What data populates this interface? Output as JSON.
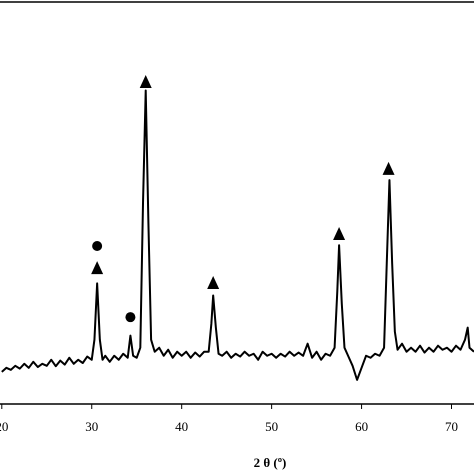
{
  "chart_data": {
    "type": "line",
    "x_label": "2 θ (º)",
    "xlim": [
      19.8,
      72.5
    ],
    "ylim": [
      0,
      100
    ],
    "xticks": [
      20,
      30,
      40,
      50,
      60,
      70
    ],
    "color": "#000000",
    "x": [
      20,
      20.5,
      21,
      21.5,
      22,
      22.5,
      23,
      23.5,
      24,
      24.5,
      25,
      25.5,
      26,
      26.5,
      27,
      27.5,
      28,
      28.5,
      29,
      29.5,
      30,
      30.3,
      30.6,
      30.9,
      31.2,
      31.5,
      32,
      32.5,
      33,
      33.5,
      34,
      34.3,
      34.6,
      35,
      35.4,
      35.7,
      36,
      36.3,
      36.6,
      37,
      37.5,
      38,
      38.5,
      39,
      39.5,
      40,
      40.5,
      41,
      41.5,
      42,
      42.5,
      43,
      43.3,
      43.5,
      43.8,
      44.1,
      44.5,
      45,
      45.5,
      46,
      46.5,
      47,
      47.5,
      48,
      48.5,
      49,
      49.5,
      50,
      50.5,
      51,
      51.5,
      52,
      52.5,
      53,
      53.5,
      54,
      54.5,
      55,
      55.5,
      56,
      56.5,
      57,
      57.3,
      57.5,
      57.8,
      58.1,
      58.5,
      59,
      59.5,
      60,
      60.5,
      61,
      61.5,
      62,
      62.5,
      62.8,
      63.1,
      63.4,
      63.7,
      64,
      64.5,
      65,
      65.5,
      66,
      66.5,
      67,
      67.5,
      68,
      68.5,
      69,
      69.5,
      70,
      70.5,
      71,
      71.5,
      71.8,
      72,
      72.5
    ],
    "values": [
      8,
      9,
      8.5,
      9.5,
      8.8,
      10,
      9,
      10.5,
      9.2,
      10,
      9.5,
      11,
      9.4,
      10.8,
      9.8,
      11.5,
      10,
      11,
      10.2,
      11.8,
      11,
      16,
      30,
      16,
      11,
      12,
      10.5,
      12,
      11,
      12.5,
      11.5,
      17,
      12,
      11.5,
      14,
      50,
      78,
      45,
      16,
      13,
      14,
      12,
      13.5,
      11.5,
      13,
      12,
      13,
      11.5,
      12.8,
      11.8,
      13,
      13,
      20,
      27,
      19,
      12.5,
      12,
      13,
      11.5,
      12.5,
      11.8,
      13,
      12,
      12.5,
      11,
      13,
      12,
      12.5,
      11.5,
      12.5,
      11.8,
      13,
      12,
      12.8,
      12,
      15,
      11.5,
      13,
      11,
      12.5,
      12,
      14,
      28,
      39.5,
      25,
      14,
      12,
      9.5,
      6,
      9,
      12,
      11.5,
      12.5,
      12,
      14,
      35,
      55.7,
      35,
      18,
      13.5,
      15,
      13,
      14,
      13,
      14.5,
      12.8,
      14,
      13,
      14.5,
      13.5,
      14,
      13,
      14.5,
      13.5,
      16,
      19,
      14,
      13
    ],
    "markers": [
      {
        "shape": "triangle",
        "x": 30.6,
        "y": 33.8
      },
      {
        "shape": "circle",
        "x": 30.6,
        "y": 39.3
      },
      {
        "shape": "circle",
        "x": 34.3,
        "y": 21.6
      },
      {
        "shape": "triangle",
        "x": 36,
        "y": 80.1
      },
      {
        "shape": "triangle",
        "x": 43.5,
        "y": 30.1
      },
      {
        "shape": "triangle",
        "x": 57.5,
        "y": 42.3
      },
      {
        "shape": "triangle",
        "x": 63,
        "y": 58.5
      }
    ]
  }
}
